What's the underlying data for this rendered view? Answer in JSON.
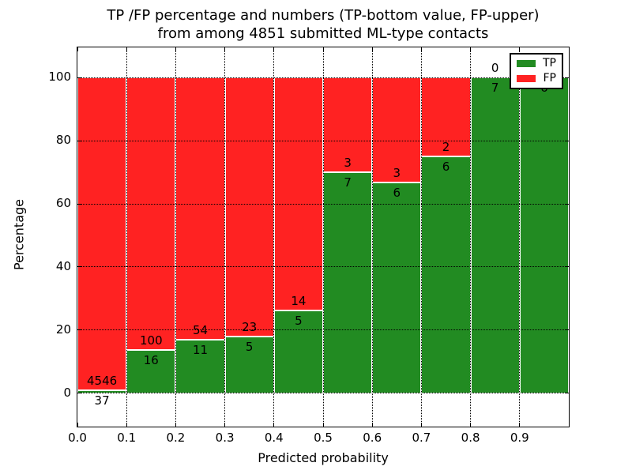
{
  "title": {
    "line1": "TP /FP percentage and numbers (TP-bottom value, FP-upper)",
    "line2": "from among 4851 submitted ML-type contacts"
  },
  "axes": {
    "x_label": "Predicted probability",
    "y_label": "Percentage",
    "x_ticks": [
      "0.0",
      "0.1",
      "0.2",
      "0.3",
      "0.4",
      "0.5",
      "0.6",
      "0.7",
      "0.8",
      "0.9"
    ],
    "y_ticks": [
      "0",
      "20",
      "40",
      "60",
      "80",
      "100"
    ]
  },
  "legend": {
    "items": [
      {
        "label": "TP",
        "color": "#228B22"
      },
      {
        "label": "FP",
        "color": "#FF2222"
      }
    ]
  },
  "chart_data": {
    "type": "bar",
    "stacked": true,
    "normalized": "each 0.1-wide bin stacked to 100%",
    "bin_edges": [
      0.0,
      0.1,
      0.2,
      0.3,
      0.4,
      0.5,
      0.6,
      0.7,
      0.8,
      0.9,
      1.0
    ],
    "categories": [
      "0.0-0.1",
      "0.1-0.2",
      "0.2-0.3",
      "0.3-0.4",
      "0.4-0.5",
      "0.5-0.6",
      "0.6-0.7",
      "0.7-0.8",
      "0.8-0.9",
      "0.9-1.0"
    ],
    "series": [
      {
        "name": "TP",
        "color": "#228B22",
        "counts": [
          37,
          16,
          11,
          5,
          5,
          7,
          6,
          6,
          7,
          6
        ],
        "percent": [
          0.81,
          13.79,
          16.92,
          17.86,
          26.32,
          70.0,
          66.67,
          75.0,
          100.0,
          100.0
        ]
      },
      {
        "name": "FP",
        "color": "#FF2222",
        "counts": [
          4546,
          100,
          54,
          23,
          14,
          3,
          3,
          2,
          0,
          0
        ],
        "percent": [
          99.19,
          86.21,
          83.08,
          82.14,
          73.68,
          30.0,
          33.33,
          25.0,
          0.0,
          0.0
        ]
      }
    ],
    "total_contacts": 4851,
    "title": "TP /FP percentage and numbers (TP-bottom value, FP-upper) from among 4851 submitted ML-type contacts",
    "xlabel": "Predicted probability",
    "ylabel": "Percentage",
    "xlim": [
      0.0,
      1.0
    ],
    "ylim": [
      -10.6,
      109.6
    ],
    "grid": "dotted",
    "legend_position": "upper right",
    "bar_label_placement": "TP count just below segment boundary, FP count just above segment boundary"
  }
}
